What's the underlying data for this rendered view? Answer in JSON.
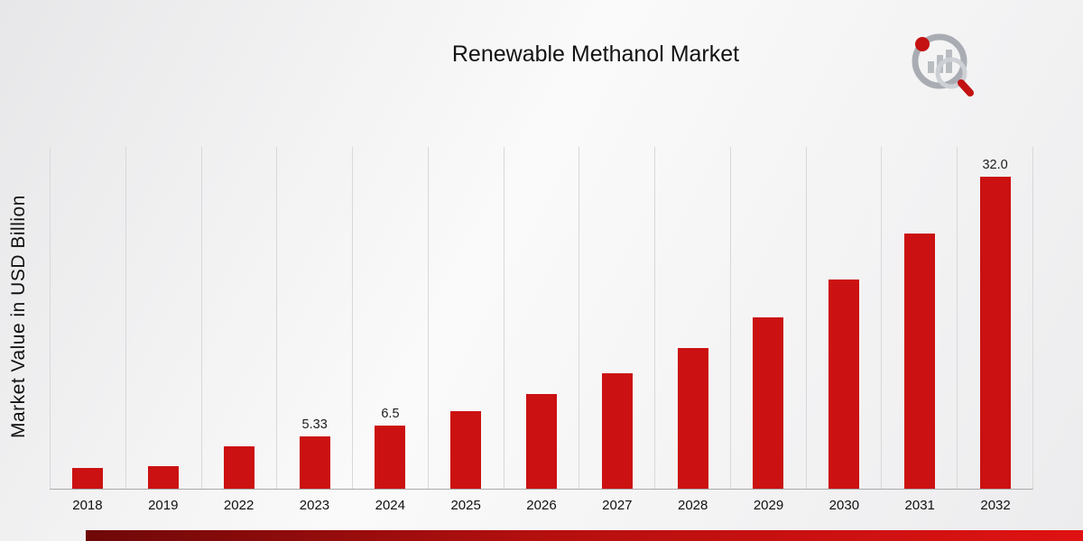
{
  "page": {
    "title": "Renewable Methanol Market",
    "y_axis_label": "Market Value in USD Billion"
  },
  "logo": {
    "name": "market-research-brand-logo"
  },
  "chart_data": {
    "type": "bar",
    "title": "Renewable Methanol Market",
    "xlabel": "",
    "ylabel": "Market Value in USD Billion",
    "categories": [
      "2018",
      "2019",
      "2022",
      "2023",
      "2024",
      "2025",
      "2026",
      "2027",
      "2028",
      "2029",
      "2030",
      "2031",
      "2032"
    ],
    "values": [
      2.1,
      2.3,
      4.37,
      5.33,
      6.5,
      7.93,
      9.67,
      11.8,
      14.39,
      17.56,
      21.42,
      26.13,
      32.0
    ],
    "bar_labels": [
      "",
      "",
      "",
      "5.33",
      "6.5",
      "",
      "",
      "",
      "",
      "",
      "",
      "",
      "32.0"
    ],
    "ylim": [
      0,
      35
    ],
    "bar_color": "#cb1111",
    "grid": "vertical-only",
    "legend": "none"
  },
  "footer": {
    "stripe_colors": [
      "#6f0808",
      "#b40f0f",
      "#df1212"
    ]
  }
}
